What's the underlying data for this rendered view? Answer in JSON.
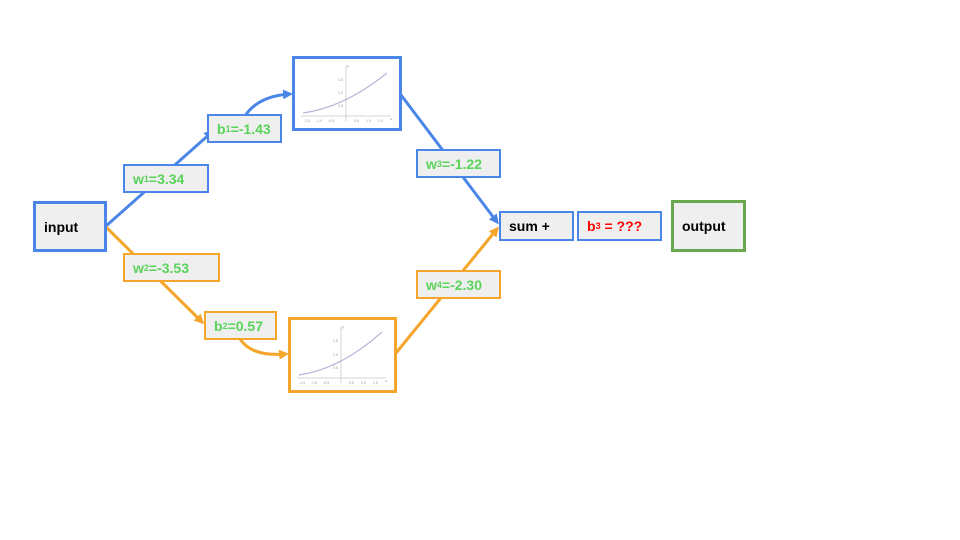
{
  "nodes": {
    "input": "input",
    "sum": "sum +",
    "output": "output"
  },
  "params": {
    "w1": {
      "sym": "w",
      "sub": "1",
      "val": "=3.34"
    },
    "b1": {
      "sym": "b",
      "sub": "1",
      "val": "=-1.43"
    },
    "w2": {
      "sym": "w",
      "sub": "2",
      "val": "=-3.53"
    },
    "b2": {
      "sym": "b",
      "sub": "2",
      "val": "=0.57"
    },
    "w3": {
      "sym": "w",
      "sub": "3",
      "val": "=-1.22"
    },
    "w4": {
      "sym": "w",
      "sub": "4",
      "val": "=-2.30"
    },
    "b3": {
      "sym": "b",
      "sub": "3",
      "val": " = ???"
    }
  },
  "plot": {
    "x_ticks": [
      "-1.5",
      "-1.0",
      "-0.5",
      "0.5",
      "1.0",
      "1.5"
    ],
    "y_ticks": [
      "0.5",
      "1.0",
      "1.5"
    ],
    "x_label": "x",
    "y_label": "y"
  },
  "colors": {
    "top_path": "#4a86e8",
    "bottom_path": "#f4a52a",
    "param_text": "#5ad35a",
    "unknown_bias": "#ff0000",
    "output_border": "#6aa84f"
  }
}
